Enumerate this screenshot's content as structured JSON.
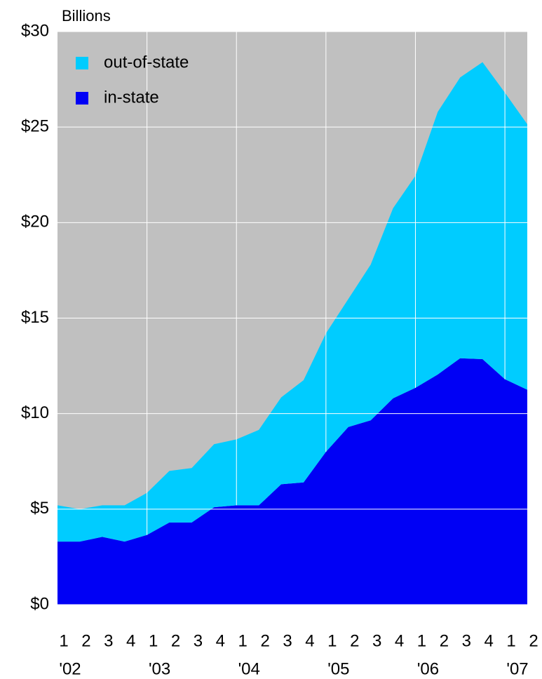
{
  "chart_data": {
    "type": "stacked_area",
    "y_axis_label": "Billions",
    "categories": [
      "1",
      "2",
      "3",
      "4",
      "1",
      "2",
      "3",
      "4",
      "1",
      "2",
      "3",
      "4",
      "1",
      "2",
      "3",
      "4",
      "1",
      "2",
      "3",
      "4",
      "1",
      "2"
    ],
    "years": [
      "'02",
      "'03",
      "'04",
      "'05",
      "'06",
      "'07"
    ],
    "series": [
      {
        "name": "in-state",
        "color": "#0000f5",
        "values": [
          3.3,
          3.3,
          3.55,
          3.3,
          3.65,
          4.3,
          4.3,
          5.1,
          5.2,
          5.2,
          6.3,
          6.4,
          8.0,
          9.3,
          9.65,
          10.8,
          11.35,
          12.05,
          12.9,
          12.85,
          11.8,
          11.25
        ]
      },
      {
        "name": "out-of-state",
        "color": "#00ccff",
        "values": [
          1.9,
          1.7,
          1.65,
          1.9,
          2.2,
          2.7,
          2.85,
          3.3,
          3.45,
          3.95,
          4.55,
          5.35,
          6.2,
          6.7,
          8.15,
          9.95,
          11.1,
          13.75,
          14.7,
          15.55,
          15.0,
          13.9
        ]
      }
    ],
    "ylim": [
      0,
      30
    ],
    "yticks": [
      {
        "value": 0,
        "label": "$0"
      },
      {
        "value": 5,
        "label": "$5"
      },
      {
        "value": 10,
        "label": "$10"
      },
      {
        "value": 15,
        "label": "$15"
      },
      {
        "value": 20,
        "label": "$20"
      },
      {
        "value": 25,
        "label": "$25"
      },
      {
        "value": 30,
        "label": "$30"
      }
    ],
    "grid": true,
    "legend": "top-left",
    "background": "#c0c0c0"
  }
}
